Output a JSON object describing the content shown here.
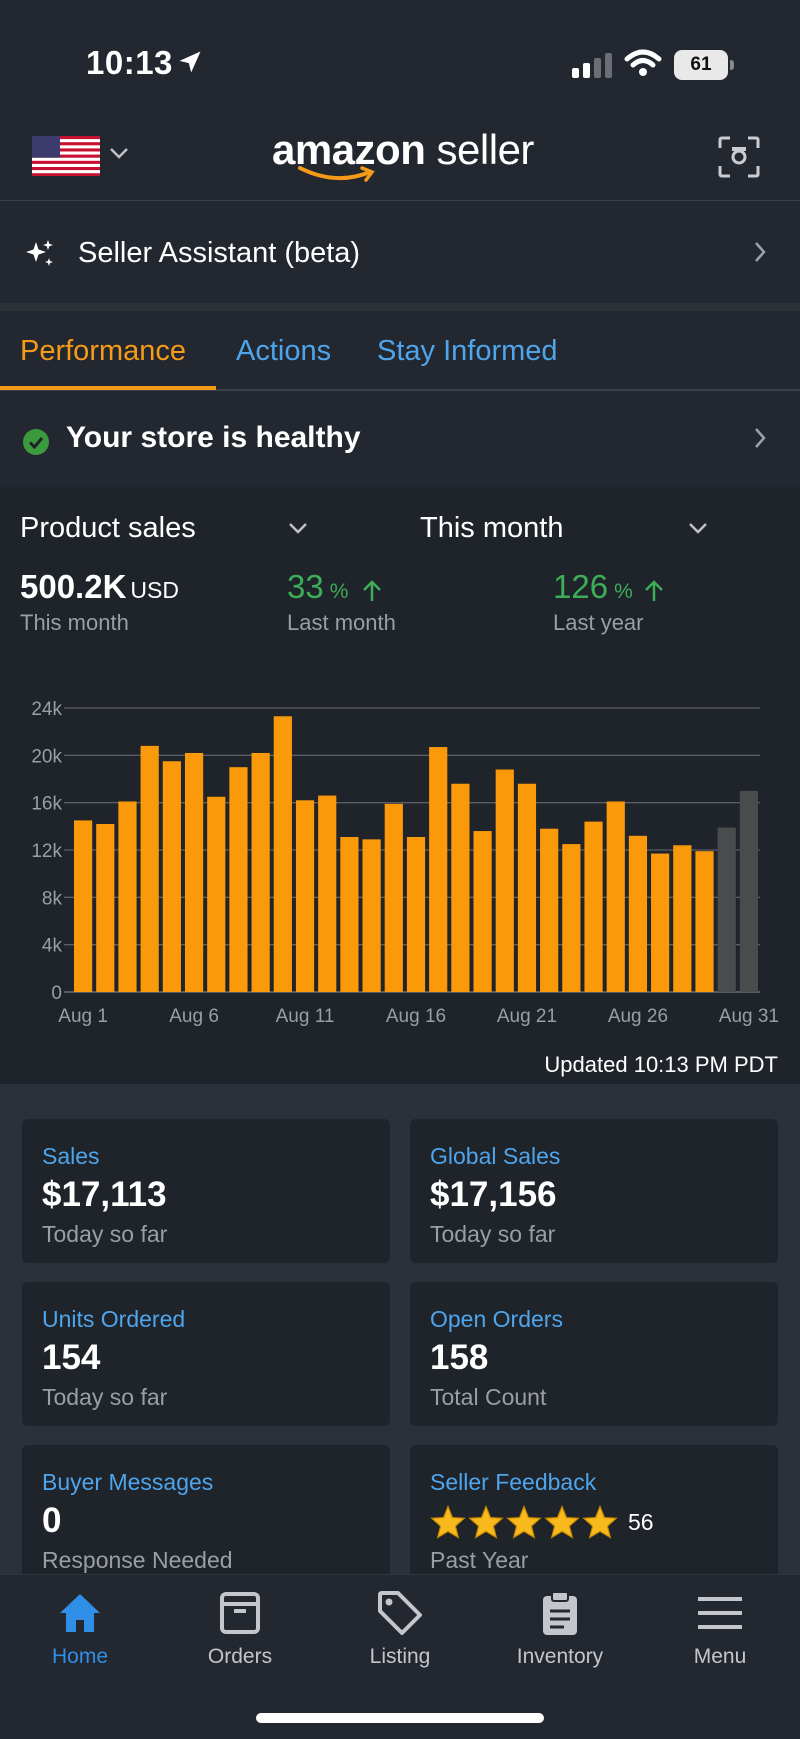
{
  "status_bar": {
    "time": "10:13",
    "battery": "61"
  },
  "header": {
    "logo_bold": "amazon",
    "logo_rest": "seller"
  },
  "assistant": {
    "label": "Seller Assistant (beta)"
  },
  "tabs": [
    {
      "label": "Performance",
      "active": true
    },
    {
      "label": "Actions",
      "active": false
    },
    {
      "label": "Stay Informed",
      "active": false
    }
  ],
  "health": {
    "label": "Your store is healthy"
  },
  "performance": {
    "metric_dropdown": "Product sales",
    "period_dropdown": "This month",
    "total_value": "500.2K",
    "total_unit": "USD",
    "total_sub": "This month",
    "vs_last_month": "33",
    "vs_last_month_label": "Last month",
    "vs_last_year": "126",
    "vs_last_year_label": "Last year",
    "pct_symbol": "%",
    "updated": "Updated 10:13 PM PDT"
  },
  "chart_data": {
    "type": "bar",
    "x_tick_labels": [
      "Aug 1",
      "Aug 6",
      "Aug 11",
      "Aug 16",
      "Aug 21",
      "Aug 26",
      "Aug 31"
    ],
    "y_tick_labels": [
      "0",
      "4k",
      "8k",
      "12k",
      "16k",
      "20k",
      "24k"
    ],
    "ylim": [
      0,
      24000
    ],
    "grid": true,
    "categories": [
      "Aug 1",
      "Aug 2",
      "Aug 3",
      "Aug 4",
      "Aug 5",
      "Aug 6",
      "Aug 7",
      "Aug 8",
      "Aug 9",
      "Aug 10",
      "Aug 11",
      "Aug 12",
      "Aug 13",
      "Aug 14",
      "Aug 15",
      "Aug 16",
      "Aug 17",
      "Aug 18",
      "Aug 19",
      "Aug 20",
      "Aug 21",
      "Aug 22",
      "Aug 23",
      "Aug 24",
      "Aug 25",
      "Aug 26",
      "Aug 27",
      "Aug 28",
      "Aug 29",
      "Aug 30",
      "Aug 31"
    ],
    "values": [
      14500,
      14200,
      16100,
      20800,
      19500,
      20200,
      16500,
      19000,
      20200,
      23300,
      16200,
      16600,
      13100,
      12900,
      15900,
      13100,
      20700,
      17600,
      13600,
      18800,
      17600,
      13800,
      12500,
      14400,
      16100,
      13200,
      11700,
      12400,
      11900,
      13900,
      17000
    ],
    "colors": {
      "actual": "#fa9a0a",
      "projected": "#4a4b4d"
    },
    "projected_from_index": 29
  },
  "tiles": [
    {
      "label": "Sales",
      "value": "$17,113",
      "sub": "Today so far"
    },
    {
      "label": "Global Sales",
      "value": "$17,156",
      "sub": "Today so far"
    },
    {
      "label": "Units Ordered",
      "value": "154",
      "sub": "Today so far"
    },
    {
      "label": "Open Orders",
      "value": "158",
      "sub": "Total Count"
    },
    {
      "label": "Buyer Messages",
      "value": "0",
      "sub": "Response Needed"
    },
    {
      "label": "Seller Feedback",
      "rating": 5,
      "value": "56",
      "sub": "Past Year"
    }
  ],
  "nav": [
    {
      "label": "Home",
      "icon": "home-icon",
      "active": true
    },
    {
      "label": "Orders",
      "icon": "orders-box-icon",
      "active": false
    },
    {
      "label": "Listing",
      "icon": "tag-icon",
      "active": false
    },
    {
      "label": "Inventory",
      "icon": "clipboard-icon",
      "active": false
    },
    {
      "label": "Menu",
      "icon": "hamburger-icon",
      "active": false
    }
  ],
  "colors": {
    "accent_orange": "#f59b17",
    "link_blue": "#4ea5ec",
    "positive_green": "#3dae57"
  }
}
